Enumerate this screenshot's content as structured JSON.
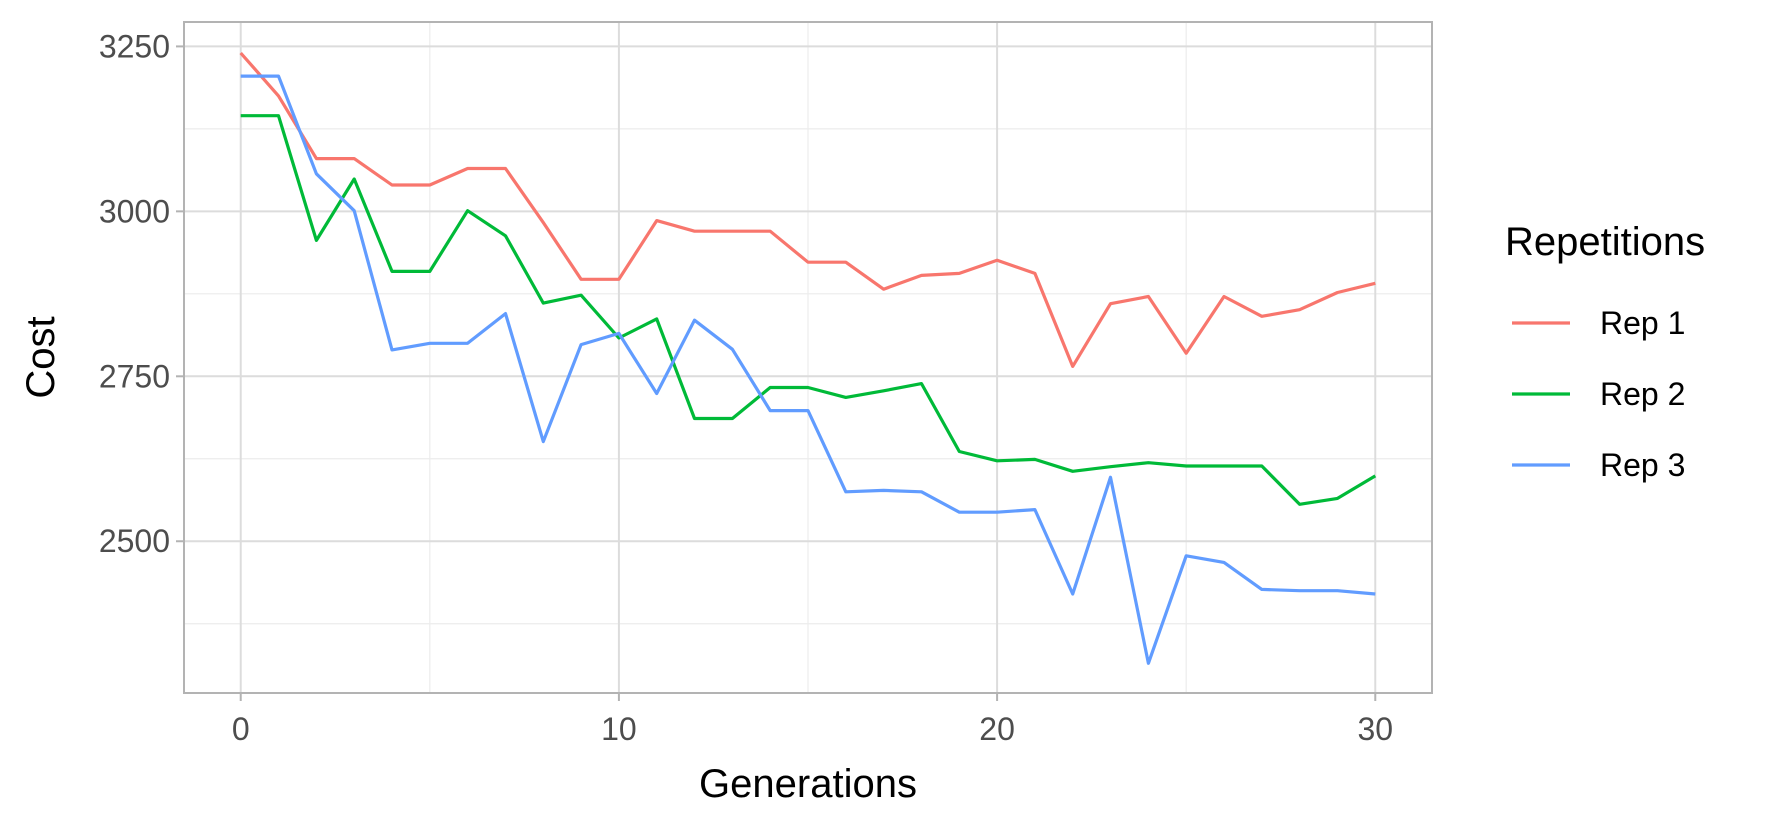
{
  "chart_data": {
    "type": "line",
    "title": "",
    "xlabel": "Generations",
    "ylabel": "Cost",
    "xlim": [
      -1.5,
      31.5
    ],
    "ylim": [
      2270,
      3287
    ],
    "x_ticks": [
      0,
      10,
      20,
      30
    ],
    "y_ticks": [
      2500,
      2750,
      3000,
      3250
    ],
    "x_minor_ticks": [
      5,
      15,
      25
    ],
    "y_minor_ticks": [
      2375,
      2625,
      2875,
      3125
    ],
    "grid": true,
    "legend": {
      "title": "Repetitions",
      "position": "right"
    },
    "x": [
      0,
      1,
      2,
      3,
      4,
      5,
      6,
      7,
      8,
      9,
      10,
      11,
      12,
      13,
      14,
      15,
      16,
      17,
      18,
      19,
      20,
      21,
      22,
      23,
      24,
      25,
      26,
      27,
      28,
      29,
      30
    ],
    "series": [
      {
        "name": "Rep 1",
        "color": "#F8766D",
        "values": [
          3240,
          3175,
          3080,
          3080,
          3040,
          3040,
          3065,
          3065,
          2983,
          2897,
          2897,
          2986,
          2970,
          2970,
          2970,
          2923,
          2923,
          2882,
          2903,
          2906,
          2926,
          2906,
          2765,
          2860,
          2871,
          2785,
          2871,
          2841,
          2851,
          2877,
          2891
        ]
      },
      {
        "name": "Rep 2",
        "color": "#00BA38",
        "values": [
          3145,
          3145,
          2956,
          3049,
          2909,
          2909,
          3001,
          2963,
          2861,
          2873,
          2808,
          2837,
          2686,
          2686,
          2733,
          2733,
          2718,
          2728,
          2739,
          2636,
          2622,
          2624,
          2606,
          2613,
          2619,
          2614,
          2614,
          2614,
          2556,
          2565,
          2599
        ]
      },
      {
        "name": "Rep 3",
        "color": "#619CFF",
        "values": [
          3205,
          3205,
          3057,
          3001,
          2790,
          2800,
          2800,
          2845,
          2651,
          2798,
          2815,
          2724,
          2835,
          2791,
          2698,
          2698,
          2575,
          2577,
          2575,
          2544,
          2544,
          2548,
          2420,
          2597,
          2315,
          2478,
          2468,
          2427,
          2425,
          2425,
          2420
        ]
      }
    ]
  }
}
